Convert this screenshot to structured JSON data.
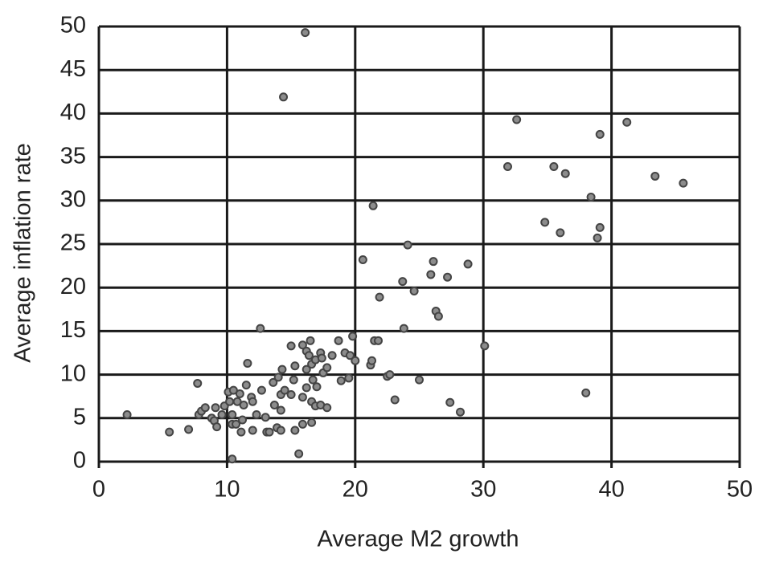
{
  "chart_data": {
    "type": "scatter",
    "x_label": "Average M2 growth",
    "y_label": "Average inflation rate",
    "xlim": [
      0,
      50
    ],
    "ylim": [
      0,
      50
    ],
    "xticks": [
      0,
      10,
      20,
      30,
      40,
      50
    ],
    "yticks": [
      0,
      5,
      10,
      15,
      20,
      25,
      30,
      35,
      40,
      45,
      50
    ],
    "grid": true,
    "color": "#8c8c8c",
    "x": [
      2.2,
      5.5,
      7.0,
      7.7,
      7.8,
      8.0,
      8.3,
      8.8,
      9.0,
      9.2,
      9.1,
      9.6,
      9.8,
      10.1,
      10.2,
      10.4,
      10.4,
      10.4,
      10.5,
      10.7,
      10.8,
      11.0,
      11.1,
      11.2,
      11.3,
      11.5,
      11.6,
      11.9,
      12.0,
      12.0,
      12.3,
      12.6,
      12.7,
      13.0,
      13.1,
      13.3,
      13.6,
      13.7,
      13.9,
      14.0,
      14.2,
      14.2,
      14.2,
      14.4,
      14.3,
      14.5,
      15.0,
      15.0,
      15.2,
      15.3,
      15.3,
      15.6,
      15.9,
      15.9,
      15.9,
      16.1,
      16.2,
      16.2,
      16.2,
      16.4,
      16.5,
      16.6,
      16.6,
      16.6,
      16.7,
      16.9,
      16.9,
      17.0,
      17.3,
      17.3,
      17.4,
      17.5,
      17.8,
      17.8,
      18.2,
      18.7,
      18.9,
      19.2,
      19.5,
      19.6,
      19.8,
      20.0,
      20.6,
      21.2,
      21.3,
      21.4,
      21.5,
      21.8,
      21.9,
      22.5,
      22.7,
      23.1,
      23.7,
      23.8,
      24.1,
      24.6,
      25.0,
      25.9,
      26.1,
      26.3,
      26.5,
      27.2,
      27.4,
      28.2,
      28.8,
      30.1,
      31.9,
      32.6,
      34.8,
      35.5,
      36.0,
      36.4,
      38.0,
      38.4,
      38.9,
      39.1,
      39.1,
      41.2,
      43.4,
      45.6
    ],
    "values": [
      5.4,
      3.4,
      3.7,
      9.0,
      5.4,
      5.8,
      6.2,
      5.0,
      4.7,
      4.0,
      6.2,
      5.4,
      6.4,
      8.0,
      6.9,
      5.4,
      4.3,
      0.3,
      8.2,
      4.3,
      6.9,
      7.8,
      3.4,
      4.8,
      6.5,
      8.8,
      11.3,
      7.4,
      3.6,
      6.9,
      5.4,
      15.3,
      8.2,
      5.1,
      3.4,
      3.4,
      9.1,
      6.5,
      3.9,
      9.7,
      3.6,
      7.7,
      5.9,
      41.9,
      10.6,
      8.2,
      7.7,
      13.3,
      9.4,
      11.0,
      3.6,
      0.9,
      7.4,
      13.4,
      4.3,
      49.3,
      12.7,
      10.6,
      8.5,
      12.2,
      13.9,
      11.2,
      4.5,
      6.9,
      9.4,
      11.7,
      6.4,
      8.6,
      12.5,
      6.5,
      11.9,
      10.2,
      10.8,
      6.2,
      12.2,
      13.9,
      9.3,
      12.5,
      9.6,
      12.2,
      14.4,
      11.6,
      23.2,
      11.1,
      11.6,
      29.4,
      13.9,
      13.9,
      18.9,
      9.8,
      10.0,
      7.1,
      20.7,
      15.3,
      24.9,
      19.6,
      9.4,
      21.5,
      23.0,
      17.3,
      16.7,
      21.2,
      6.8,
      5.7,
      22.7,
      13.3,
      33.9,
      39.3,
      27.5,
      33.9,
      26.3,
      33.1,
      7.9,
      30.4,
      25.7,
      37.6,
      26.9,
      39.0,
      32.8,
      32.0
    ]
  }
}
